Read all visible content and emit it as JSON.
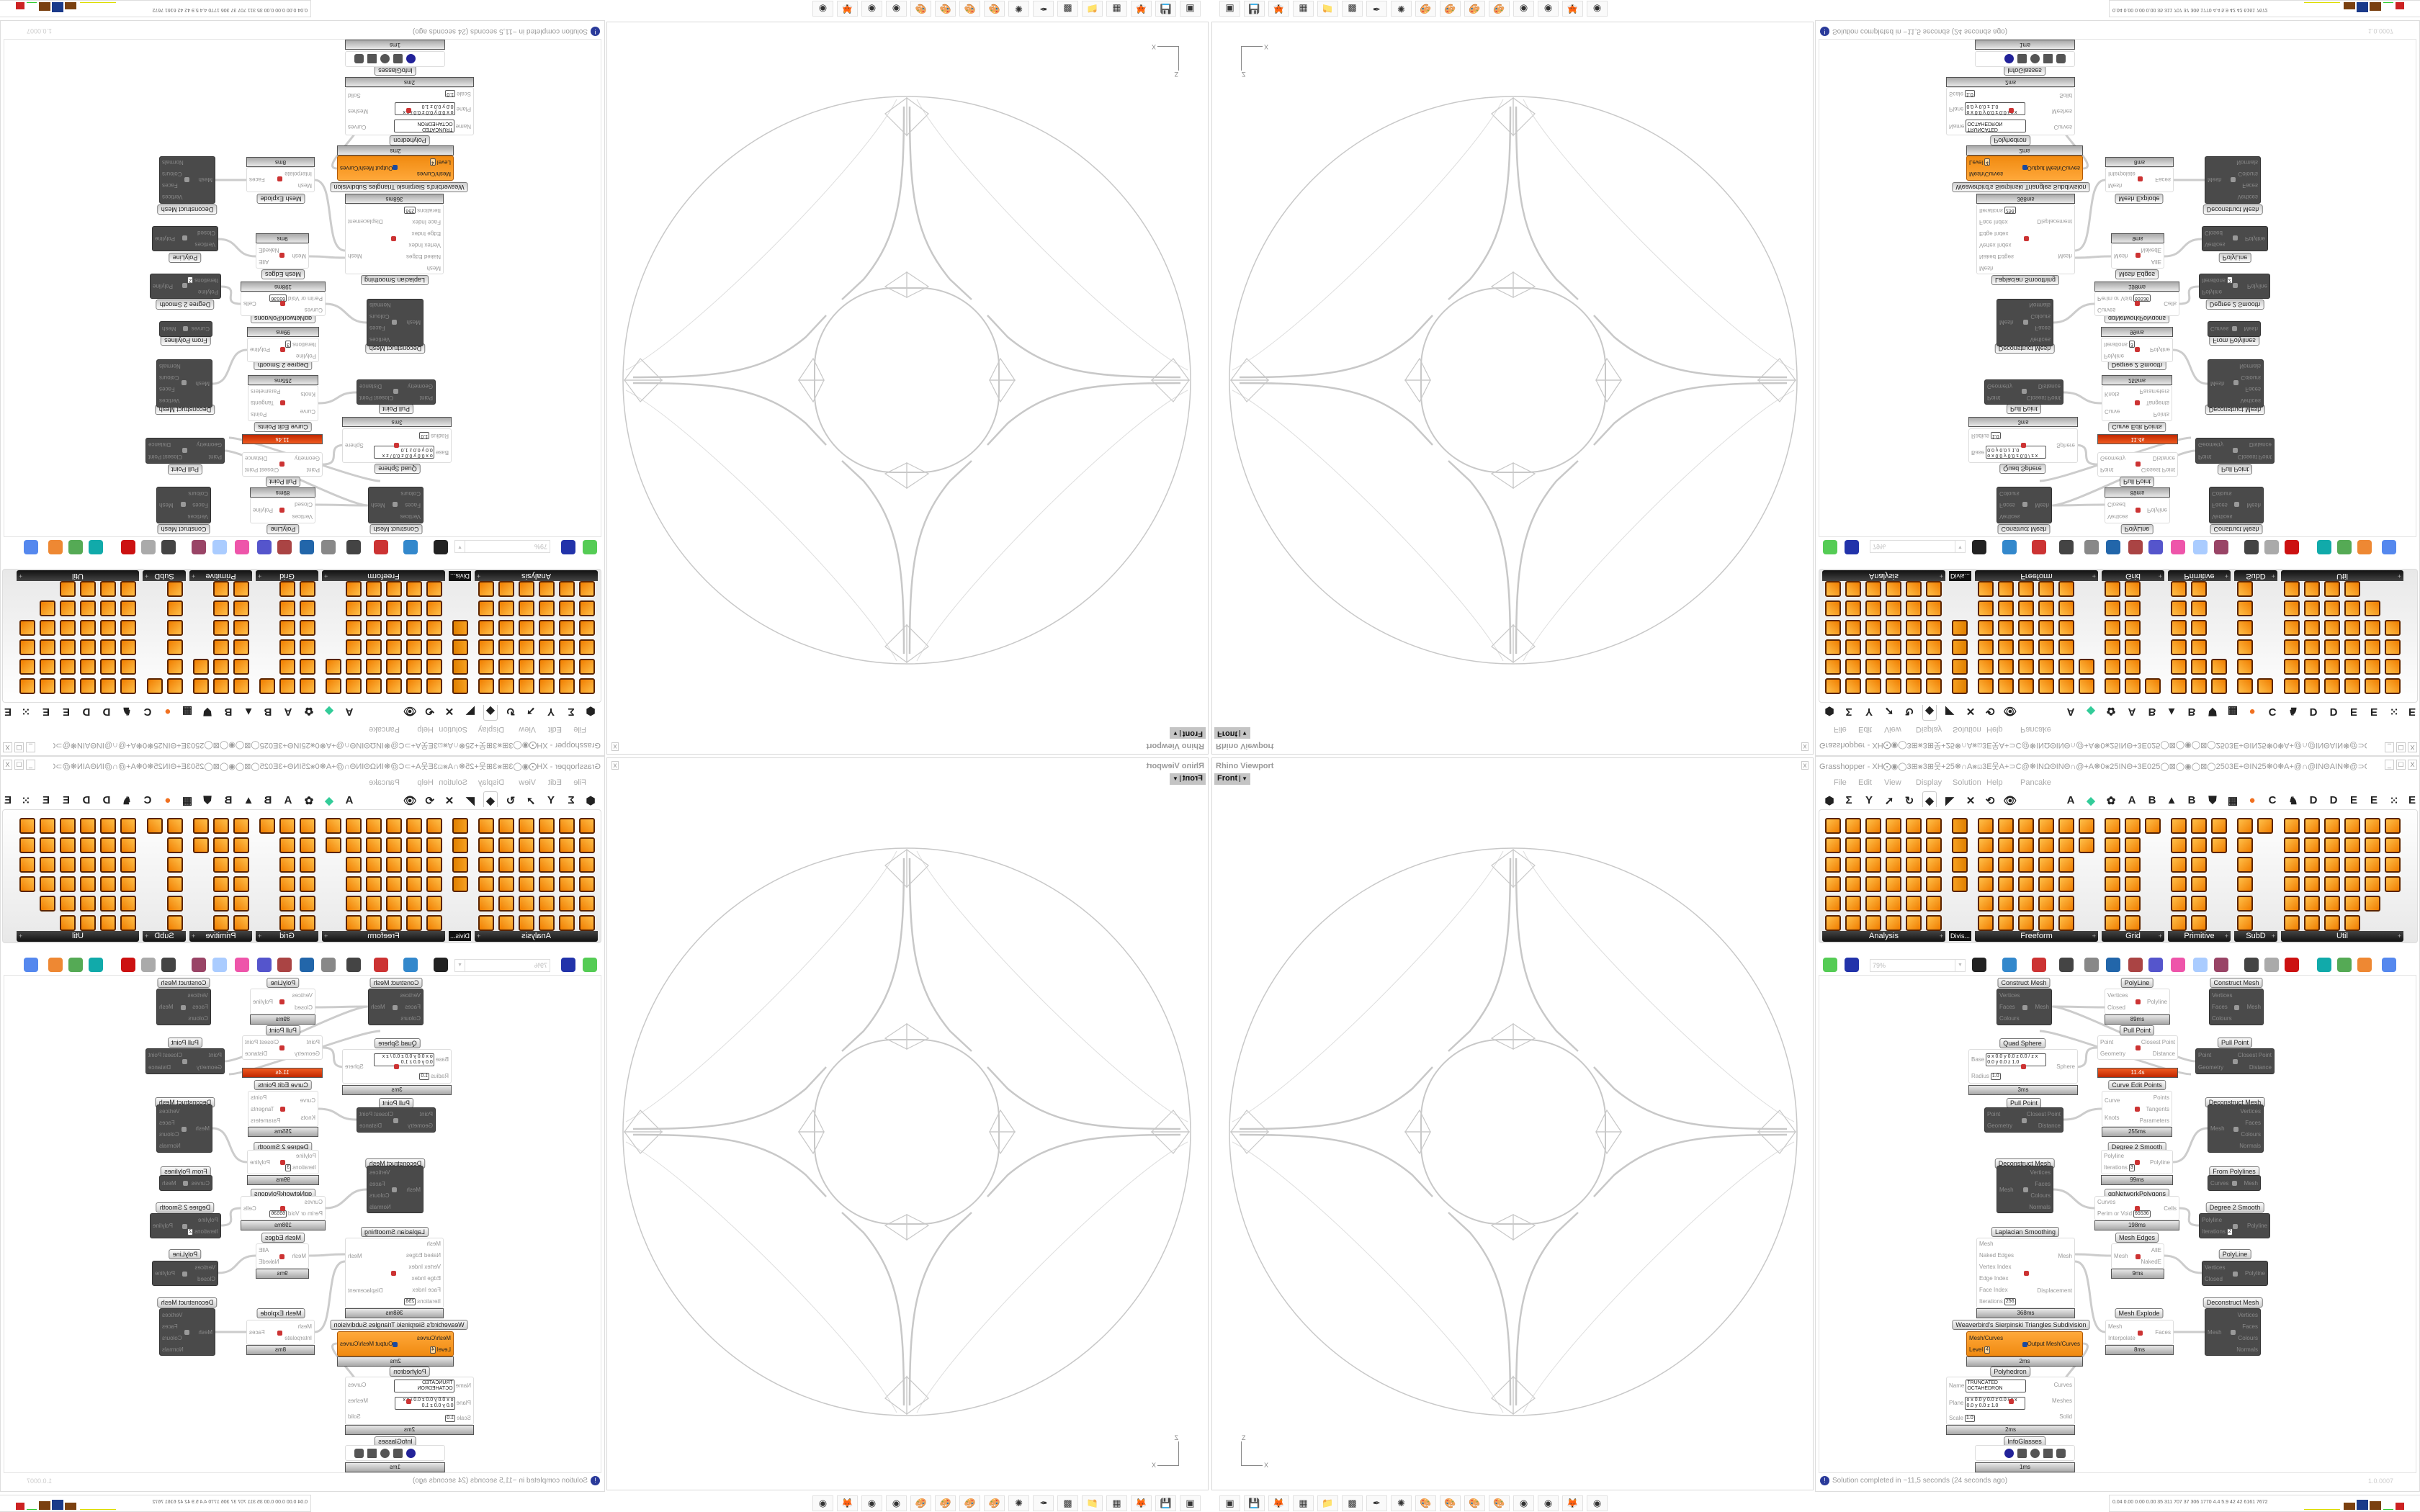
{
  "colors": {
    "accent_orange": "#f08a10",
    "timer_red": "#d03a10",
    "node_dark": "#4a4a4a",
    "ribbon_header": "#1a1a1a",
    "wire": "#cccccc",
    "geometry": "#c8c8c8"
  },
  "viewport": {
    "title": "Rhino Viewport",
    "view": "Front",
    "close": "x",
    "axis": {
      "z": "Z",
      "x": "X"
    }
  },
  "taskbar": {
    "icons": [
      "terminal-icon",
      "floppy-64-icon",
      "firefox-icon",
      "calculator-icon",
      "folder-icon",
      "app-icon",
      "inkscape-icon",
      "redapp-icon",
      "paint-icon",
      "paint-icon",
      "paint-icon",
      "paint-icon",
      "blender-icon",
      "blender-icon",
      "firefox-icon",
      "blender-icon"
    ]
  },
  "gh": {
    "title": "Grasshopper - XH⨀◉◯3⊞⨳3⊞웃+25❋∩A⨳⊡3E웃A+⊃C@❋INΩΘINΘ∩@+A❋0⨳25INΘ+3E025◯⊠◯◉◯⊠◯2503E+ΘIN25❋0❋A+@∩@INΘAIN❋@⊃C+A웃3E⊡A∩❋...",
    "window_controls": [
      "_",
      "☐",
      "X"
    ],
    "menu": [
      "File",
      "Edit",
      "View",
      "Display",
      "Solution",
      "Help",
      "Pancake"
    ],
    "tab_icons": [
      "hexagon-icon",
      "sigma-icon",
      "vector-icon",
      "arrow-icon",
      "curve-icon",
      "surface-icon",
      "mesh-icon",
      "intersect-icon",
      "transform-icon",
      "display-icon",
      "A",
      "leaf-icon",
      "cube-icon",
      "A",
      "B",
      "mountain-icon",
      "B",
      "shield-icon",
      "grid-icon",
      "orange-circle-icon",
      "C",
      "rooster-icon",
      "D",
      "D",
      "E",
      "E",
      "dots-icon",
      "E"
    ],
    "tab_glyphs": [
      "⬢",
      "Σ",
      "Y",
      "➚",
      "↻",
      "◆",
      "◤",
      "✕",
      "⟲",
      "👁",
      "A",
      "◆",
      "✿",
      "A",
      "B",
      "▲",
      "B",
      "⛊",
      "▦",
      "●",
      "C",
      "♞",
      "D",
      "D",
      "E",
      "E",
      "⁙",
      "E"
    ],
    "ribbon_sections": [
      "Analysis",
      "Divis...",
      "Freeform",
      "Grid",
      "Primitive",
      "SubD",
      "Util"
    ],
    "ribbon_plus": "+",
    "zoom": "79%",
    "toolbar_icons": [
      "new-file-icon",
      "save-icon",
      "zoom-extents-icon",
      "preview-eye-icon",
      "sketch-icon",
      "bifocals-icon",
      "at-icon",
      "gha-icon",
      "panel-icon",
      "search-icon",
      "package-icon",
      "bulb-icon",
      "wires-icon",
      "mesh-preview-icon",
      "wireframe-icon",
      "shaded-icon",
      "surface-icon",
      "selected-icon",
      "material-icon",
      "sphere-icon"
    ],
    "nodes": [
      {
        "label": "Construct Mesh",
        "type": "dark",
        "in": [
          {
            "n": "Vertices"
          },
          {
            "n": "Faces"
          },
          {
            "n": "Colours"
          }
        ],
        "out": [
          {
            "n": "Mesh"
          }
        ]
      },
      {
        "label": "PolyLine",
        "type": "white",
        "in": [
          {
            "n": "Vertices"
          },
          {
            "n": "Closed"
          }
        ],
        "out": [
          {
            "n": "Polyline"
          }
        ],
        "timer": "89ms"
      },
      {
        "label": "Construct Mesh",
        "type": "dark",
        "in": [
          {
            "n": "Vertices"
          },
          {
            "n": "Faces"
          },
          {
            "n": "Colours"
          }
        ],
        "out": [
          {
            "n": "Mesh"
          }
        ]
      },
      {
        "label": "Pull Point",
        "type": "white",
        "in": [
          {
            "n": "Point"
          },
          {
            "n": "Geometry"
          }
        ],
        "out": [
          {
            "n": "Closest Point"
          },
          {
            "n": "Distance"
          }
        ],
        "timer": "11.4s",
        "timer_red": true
      },
      {
        "label": "Quad Sphere",
        "type": "white",
        "in": [
          {
            "n": "Base",
            "v": "o x 0.0 y 0.0 z 0.0 / z x 0.0 y 0.0 z 1.0"
          },
          {
            "n": "Radius",
            "v": "1.0"
          }
        ],
        "out": [
          {
            "n": "Sphere"
          }
        ],
        "timer": "3ms"
      },
      {
        "label": "Pull Point",
        "type": "dark",
        "in": [
          {
            "n": "Point"
          },
          {
            "n": "Geometry"
          }
        ],
        "out": [
          {
            "n": "Closest Point"
          },
          {
            "n": "Distance"
          }
        ]
      },
      {
        "label": "Curve Edit Points",
        "type": "white",
        "in": [
          {
            "n": "Curve"
          },
          {
            "n": "Knots"
          }
        ],
        "out": [
          {
            "n": "Points"
          },
          {
            "n": "Tangents"
          },
          {
            "n": "Parameters"
          }
        ],
        "timer": "255ms"
      },
      {
        "label": "Pull Point",
        "type": "dark",
        "in": [
          {
            "n": "Point"
          },
          {
            "n": "Geometry"
          }
        ],
        "out": [
          {
            "n": "Closest Point"
          },
          {
            "n": "Distance"
          }
        ]
      },
      {
        "label": "Deconstruct Mesh",
        "type": "dark",
        "in": [
          {
            "n": "Mesh"
          }
        ],
        "out": [
          {
            "n": "Vertices"
          },
          {
            "n": "Faces"
          },
          {
            "n": "Colours"
          },
          {
            "n": "Normals"
          }
        ]
      },
      {
        "label": "Degree 2 Smooth",
        "type": "white",
        "in": [
          {
            "n": "Polyline"
          },
          {
            "n": "Iterations",
            "v": "3"
          }
        ],
        "out": [
          {
            "n": "Polyline"
          }
        ],
        "timer": "99ms"
      },
      {
        "label": "Deconstruct Mesh",
        "type": "dark",
        "in": [
          {
            "n": "Mesh"
          }
        ],
        "out": [
          {
            "n": "Vertices"
          },
          {
            "n": "Faces"
          },
          {
            "n": "Colours"
          },
          {
            "n": "Normals"
          }
        ]
      },
      {
        "label": "From Polylines",
        "type": "dark",
        "in": [
          {
            "n": "Curves"
          }
        ],
        "out": [
          {
            "n": "Mesh"
          }
        ]
      },
      {
        "label": "ggNetworkPolygons",
        "type": "white",
        "in": [
          {
            "n": "Curves"
          },
          {
            "n": "Perim or Void",
            "v": "65536"
          }
        ],
        "out": [
          {
            "n": "Cells"
          }
        ],
        "timer": "198ms"
      },
      {
        "label": "Degree 2 Smooth",
        "type": "dark",
        "in": [
          {
            "n": "Polyline"
          },
          {
            "n": "Iterations",
            "v": "2"
          }
        ],
        "out": [
          {
            "n": "Polyline"
          }
        ]
      },
      {
        "label": "Mesh Edges",
        "type": "white",
        "in": [
          {
            "n": "Mesh"
          }
        ],
        "out": [
          {
            "n": "AllE"
          },
          {
            "n": "NakedE"
          }
        ],
        "timer": "9ms"
      },
      {
        "label": "Laplacian Smoothing",
        "type": "white",
        "in": [
          {
            "n": "Mesh"
          },
          {
            "n": "Naked Edges"
          },
          {
            "n": "Vertex Index"
          },
          {
            "n": "Edge Index"
          },
          {
            "n": "Face Index"
          },
          {
            "n": "Iterations",
            "v": "256"
          }
        ],
        "out": [
          {
            "n": "Mesh"
          },
          {
            "n": "Displacement"
          }
        ],
        "timer": "368ms"
      },
      {
        "label": "PolyLine",
        "type": "dark",
        "in": [
          {
            "n": "Vertices"
          },
          {
            "n": "Closed"
          }
        ],
        "out": [
          {
            "n": "Polyline"
          }
        ]
      },
      {
        "label": "Deconstruct Mesh",
        "type": "dark",
        "in": [
          {
            "n": "Mesh"
          }
        ],
        "out": [
          {
            "n": "Vertices"
          },
          {
            "n": "Faces"
          },
          {
            "n": "Colours"
          },
          {
            "n": "Normals"
          }
        ]
      },
      {
        "label": "Mesh Explode",
        "type": "white",
        "in": [
          {
            "n": "Mesh"
          },
          {
            "n": "Interpolate"
          }
        ],
        "out": [
          {
            "n": "Faces"
          }
        ],
        "timer": "8ms"
      },
      {
        "label": "Weaverbird's Sierpinski Triangles Subdivision",
        "type": "orange",
        "in": [
          {
            "n": "Mesh/Curves"
          },
          {
            "n": "Level",
            "v": "4"
          }
        ],
        "out": [
          {
            "n": "Output Mesh/Curves"
          }
        ],
        "timer": "2ms"
      },
      {
        "label": "Polyhedron",
        "type": "white",
        "in": [
          {
            "n": "Name",
            "v": "TRUNCATED OCTAHEDRON"
          },
          {
            "n": "Plane",
            "v": "o x 0.0 y 0.0 z 0.0 / z x 0.0 y 0.0 z 1.0"
          },
          {
            "n": "Scale",
            "v": "1.0"
          }
        ],
        "out": [
          {
            "n": "Curves"
          },
          {
            "n": "Meshes"
          },
          {
            "n": "Solid"
          }
        ],
        "timer": "2ms"
      },
      {
        "label": "InfoGlasses",
        "type": "white",
        "in": [],
        "out": [],
        "timer": "1ms"
      }
    ],
    "status": "Solution completed in ~11,5 seconds (24 seconds ago)",
    "version": "1.0.0007"
  },
  "perf_strip": {
    "text": "0.04 0.00 0.00 0.00  35  311  707  37  306 1770 4.4  5.9  42  42  6161 7672"
  }
}
